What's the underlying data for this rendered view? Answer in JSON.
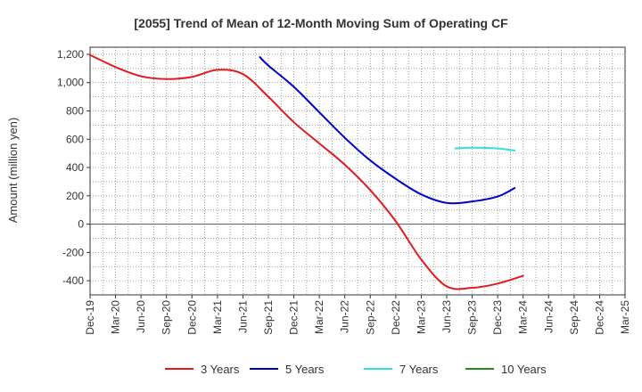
{
  "chart_data": {
    "type": "line",
    "title": "[2055]  Trend of Mean of 12-Month Moving Sum of Operating CF",
    "xlabel": "",
    "ylabel": "Amount (million yen)",
    "ylim": [
      -500,
      1250
    ],
    "yticks": [
      1200,
      1000,
      800,
      600,
      400,
      200,
      0,
      -200,
      -400
    ],
    "ytick_labels": [
      "1,200",
      "1,000",
      "800",
      "600",
      "400",
      "200",
      "0",
      "-200",
      "-400"
    ],
    "xtick_labels": [
      "Dec-19",
      "Mar-20",
      "Jun-20",
      "Sep-20",
      "Dec-20",
      "Mar-21",
      "Jun-21",
      "Sep-21",
      "Dec-21",
      "Mar-22",
      "Jun-22",
      "Sep-22",
      "Dec-22",
      "Mar-23",
      "Jun-23",
      "Sep-23",
      "Dec-23",
      "Mar-24",
      "Jun-24",
      "Sep-24",
      "Dec-24",
      "Mar-25"
    ],
    "grid": true,
    "legend_position": "bottom",
    "series": [
      {
        "name": "3 Years",
        "color": "#e31a1c",
        "points": [
          [
            0,
            1195
          ],
          [
            1,
            1110
          ],
          [
            2,
            1045
          ],
          [
            3,
            1025
          ],
          [
            4,
            1040
          ],
          [
            5,
            1090
          ],
          [
            6,
            1060
          ],
          [
            7,
            900
          ],
          [
            8,
            720
          ],
          [
            9,
            570
          ],
          [
            10,
            420
          ],
          [
            11,
            240
          ],
          [
            12,
            20
          ],
          [
            13,
            -250
          ],
          [
            14,
            -440
          ],
          [
            15,
            -450
          ],
          [
            16,
            -420
          ],
          [
            17,
            -365
          ]
        ]
      },
      {
        "name": "5 Years",
        "color": "#0000cc",
        "points": [
          [
            6.667,
            1180
          ],
          [
            7,
            1120
          ],
          [
            8,
            970
          ],
          [
            9,
            790
          ],
          [
            10,
            610
          ],
          [
            11,
            450
          ],
          [
            12,
            320
          ],
          [
            13,
            210
          ],
          [
            14,
            150
          ],
          [
            15,
            160
          ],
          [
            16,
            195
          ],
          [
            16.667,
            255
          ]
        ]
      },
      {
        "name": "7 Years",
        "color": "#33e0e0",
        "points": [
          [
            14.333,
            535
          ],
          [
            15,
            540
          ],
          [
            16,
            535
          ],
          [
            16.667,
            520
          ]
        ]
      },
      {
        "name": "10 Years",
        "color": "#228b22",
        "points": []
      }
    ]
  }
}
